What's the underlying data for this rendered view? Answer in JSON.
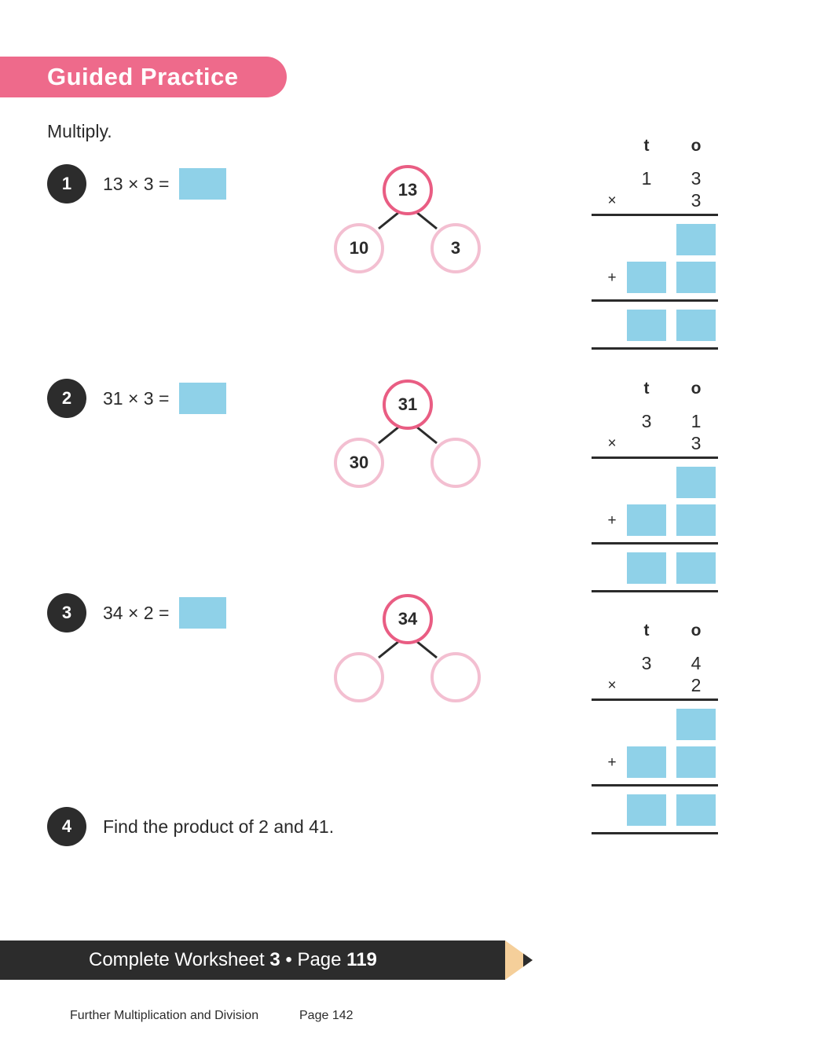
{
  "header": {
    "title": "Guided Practice"
  },
  "instruction": "Multiply.",
  "questions": [
    {
      "number": "1",
      "expression": "13 × 3 =",
      "bond": {
        "whole": "13",
        "left": "10",
        "right": "3"
      },
      "column": {
        "head_t": "t",
        "head_o": "o",
        "top_t": "1",
        "top_o": "3",
        "bottom_t": "",
        "bottom_o": "3",
        "times": "×",
        "plus": "+"
      }
    },
    {
      "number": "2",
      "expression": "31 × 3 =",
      "bond": {
        "whole": "31",
        "left": "30",
        "right": ""
      },
      "column": {
        "head_t": "t",
        "head_o": "o",
        "top_t": "3",
        "top_o": "1",
        "bottom_t": "",
        "bottom_o": "3",
        "times": "×",
        "plus": "+"
      }
    },
    {
      "number": "3",
      "expression": "34 × 2 =",
      "bond": {
        "whole": "34",
        "left": "",
        "right": ""
      },
      "column": {
        "head_t": "t",
        "head_o": "o",
        "top_t": "3",
        "top_o": "4",
        "bottom_t": "",
        "bottom_o": "2",
        "times": "×",
        "plus": "+"
      }
    },
    {
      "number": "4",
      "text": "Find the product of 2 and 41."
    }
  ],
  "worksheet": {
    "prefix": "Complete Worksheet",
    "number": "3",
    "separator": "•",
    "page_label": "Page",
    "page_number": "119"
  },
  "footer": {
    "book": "Further Multiplication and Division",
    "page": "Page 142"
  },
  "colors": {
    "accent_pink": "#ee6a8b",
    "bond_whole": "#e95d83",
    "bond_part": "#f3bfd1",
    "answer_blue": "#8fd1e8",
    "dark": "#2c2c2c",
    "pencil_tip": "#f5cf9a"
  }
}
